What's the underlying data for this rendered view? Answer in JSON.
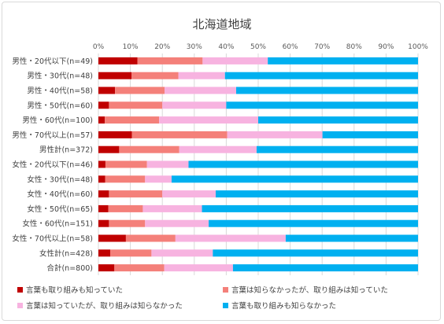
{
  "chart_data": {
    "type": "bar",
    "orientation": "horizontal",
    "stacked": true,
    "title": "北海道地域",
    "xlim": [
      0,
      100
    ],
    "x_ticks": [
      "0%",
      "10%",
      "20%",
      "30%",
      "40%",
      "50%",
      "60%",
      "70%",
      "80%",
      "90%",
      "100%"
    ],
    "grid": true,
    "legend_position": "bottom",
    "categories": [
      "男性・20代以下(n=49)",
      "男性・30代(n=48)",
      "男性・40代(n=58)",
      "男性・50代(n=60)",
      "男性・60代(n=100)",
      "男性・70代以上(n=57)",
      "男性計(n=372)",
      "女性・20代以下(n=46)",
      "女性・30代(n=48)",
      "女性・40代(n=60)",
      "女性・50代(n=65)",
      "女性・60代(n=151)",
      "女性・70代以上(n=58)",
      "女性計(n=428)",
      "合計(n=800)"
    ],
    "series": [
      {
        "name": "言葉も取り組みも知っていた",
        "color": "#c00000",
        "values": [
          12.2,
          10.4,
          5.2,
          3.3,
          2.0,
          10.5,
          6.5,
          2.2,
          2.1,
          3.3,
          3.1,
          3.3,
          8.6,
          3.7,
          5.0
        ]
      },
      {
        "name": "言葉は知らなかったが、取り組みは知っていた",
        "color": "#f4807a",
        "values": [
          20.4,
          14.6,
          15.5,
          16.7,
          17.0,
          29.8,
          18.8,
          13.0,
          12.5,
          16.7,
          10.8,
          11.3,
          15.5,
          12.9,
          15.6
        ]
      },
      {
        "name": "言葉は知っていたが、取り組みは知らなかった",
        "color": "#f7b3e0",
        "values": [
          20.4,
          14.6,
          22.4,
          20.0,
          31.0,
          29.8,
          24.2,
          13.0,
          8.3,
          16.7,
          18.5,
          19.9,
          34.5,
          19.2,
          21.5
        ]
      },
      {
        "name": "言葉も取り組みも知らなかった",
        "color": "#00b0f0",
        "values": [
          47.0,
          60.4,
          56.9,
          60.0,
          50.0,
          29.9,
          50.5,
          71.8,
          77.1,
          63.3,
          67.6,
          65.5,
          41.4,
          64.2,
          57.9
        ]
      }
    ]
  }
}
